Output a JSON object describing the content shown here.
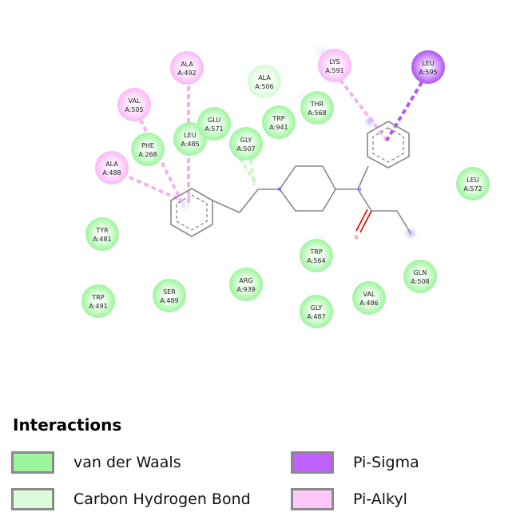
{
  "colors": {
    "vdw": "#9cf59b",
    "chb": "#dbfdd9",
    "pi_sigma": "#c060ff",
    "pi_alkyl": "#ffc8fb",
    "bond": "#888888",
    "nitrogen": "#3b3bff",
    "oxygen": "#ff0000"
  },
  "residues": [
    {
      "name": "ALA",
      "id": "A:492",
      "type": "pi_alkyl"
    },
    {
      "name": "VAL",
      "id": "A:505",
      "type": "pi_alkyl"
    },
    {
      "name": "ALA",
      "id": "A:488",
      "type": "pi_alkyl"
    },
    {
      "name": "PHE",
      "id": "A:268",
      "type": "vdw"
    },
    {
      "name": "LEU",
      "id": "A:485",
      "type": "vdw"
    },
    {
      "name": "GLU",
      "id": "A:571",
      "type": "vdw"
    },
    {
      "name": "ALA",
      "id": "A:506",
      "type": "chb"
    },
    {
      "name": "TRP",
      "id": "A:941",
      "type": "vdw"
    },
    {
      "name": "GLY",
      "id": "A:507",
      "type": "vdw"
    },
    {
      "name": "THR",
      "id": "A:568",
      "type": "vdw"
    },
    {
      "name": "LYS",
      "id": "A:591",
      "type": "pi_alkyl"
    },
    {
      "name": "LEU",
      "id": "A:595",
      "type": "pi_sigma"
    },
    {
      "name": "LEU",
      "id": "A:572",
      "type": "vdw"
    },
    {
      "name": "TYR",
      "id": "A:481",
      "type": "vdw"
    },
    {
      "name": "TRP",
      "id": "A:491",
      "type": "vdw"
    },
    {
      "name": "SER",
      "id": "A:489",
      "type": "vdw"
    },
    {
      "name": "ARG",
      "id": "A:939",
      "type": "vdw"
    },
    {
      "name": "TRP",
      "id": "A:564",
      "type": "vdw"
    },
    {
      "name": "GLY",
      "id": "A:487",
      "type": "vdw"
    },
    {
      "name": "VAL",
      "id": "A:486",
      "type": "vdw"
    },
    {
      "name": "GLN",
      "id": "A:508",
      "type": "vdw"
    }
  ],
  "atoms": {
    "n_piperidine": "N",
    "n_amide": "N",
    "o_carbonyl": "O"
  },
  "legend": {
    "title": "Interactions",
    "items": [
      {
        "label": "van der Waals",
        "type": "vdw"
      },
      {
        "label": "Carbon Hydrogen Bond",
        "type": "chb"
      },
      {
        "label": "Pi-Sigma",
        "type": "pi_sigma"
      },
      {
        "label": "Pi-Alkyl",
        "type": "pi_alkyl"
      }
    ]
  }
}
